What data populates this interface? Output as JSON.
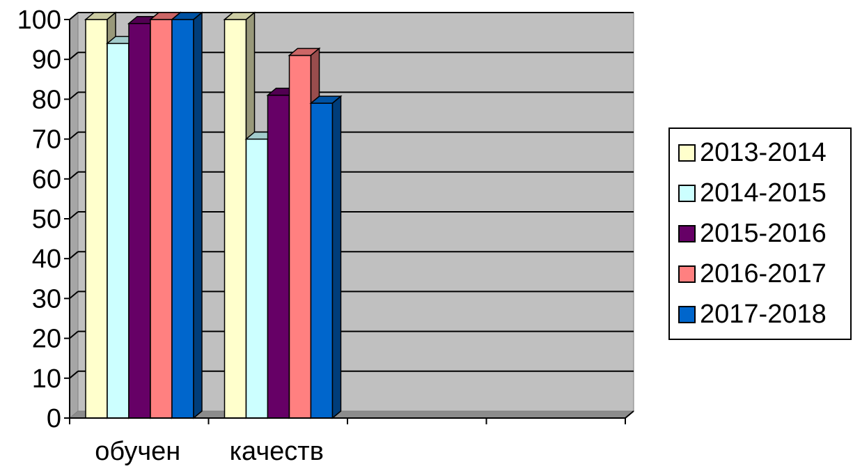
{
  "chart_data": {
    "type": "bar",
    "style": "3d-clustered-column",
    "categories": [
      "обучен",
      "качеств",
      "",
      ""
    ],
    "series": [
      {
        "name": "2013-2014",
        "values": [
          100,
          100,
          null,
          null
        ],
        "color": "#FFFFCC"
      },
      {
        "name": "2014-2015",
        "values": [
          94,
          70,
          null,
          null
        ],
        "color": "#CCFFFF"
      },
      {
        "name": "2015-2016",
        "values": [
          99,
          81,
          null,
          null
        ],
        "color": "#660066"
      },
      {
        "name": "2016-2017",
        "values": [
          100,
          91,
          null,
          null
        ],
        "color": "#FF8080"
      },
      {
        "name": "2017-2018",
        "values": [
          100,
          79,
          null,
          null
        ],
        "color": "#0066CC"
      }
    ],
    "ylim": [
      0,
      100
    ],
    "yticks": [
      "0",
      "10",
      "20",
      "30",
      "40",
      "50",
      "60",
      "70",
      "80",
      "90",
      "100"
    ],
    "grid": true,
    "legend": "right",
    "plot_background": "#C0C0C0",
    "title": "",
    "xlabel": "",
    "ylabel": ""
  }
}
